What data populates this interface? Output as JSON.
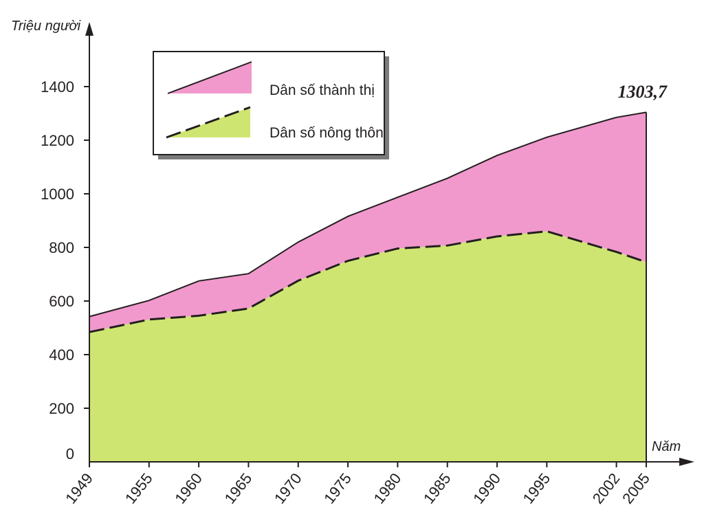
{
  "chart_data": {
    "type": "area",
    "stacked": true,
    "xlabel": "Năm",
    "ylabel": "Triệu người",
    "x": [
      1949,
      1955,
      1960,
      1965,
      1970,
      1975,
      1980,
      1985,
      1990,
      1995,
      2002,
      2005
    ],
    "ylim": [
      0,
      1500
    ],
    "yticks": [
      0,
      200,
      400,
      600,
      800,
      1000,
      1200,
      1400
    ],
    "grid": false,
    "legend_position": "top-left",
    "series": [
      {
        "name": "Dân số nông thôn",
        "color": "#cfe572",
        "line_style": "dashed",
        "values": [
          484,
          531,
          545,
          572,
          676,
          750,
          796,
          807,
          841,
          860,
          783,
          745
        ]
      },
      {
        "name": "Dân số thành thị",
        "color": "#f199cc",
        "line_style": "solid",
        "values": [
          58,
          71,
          130,
          130,
          144,
          166,
          191,
          251,
          302,
          351,
          502,
          559
        ]
      }
    ],
    "totals": [
      542,
      602,
      675,
      702,
      820,
      916,
      987,
      1058,
      1143,
      1211,
      1285,
      1304
    ],
    "annotations": [
      {
        "x": 2005,
        "text": "1303,7"
      }
    ]
  }
}
